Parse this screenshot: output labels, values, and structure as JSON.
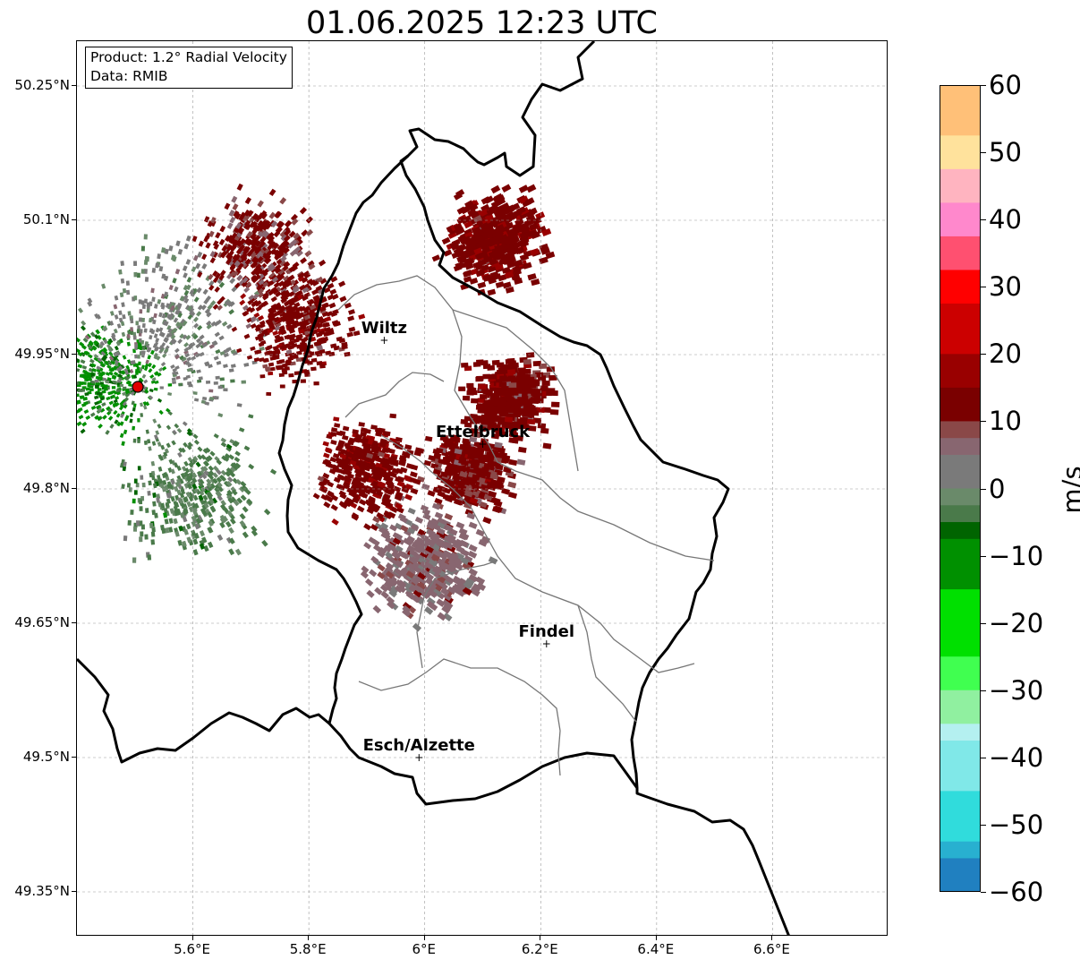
{
  "title": "01.06.2025 12:23 UTC",
  "info": {
    "product": "Product: 1.2° Radial Velocity",
    "data_source": "Data: RMIB"
  },
  "map": {
    "lon_range": [
      5.4,
      6.8
    ],
    "lat_range": [
      49.3,
      50.3
    ],
    "lat_ticks": [
      {
        "value": 50.25,
        "label": "50.25°N"
      },
      {
        "value": 50.1,
        "label": "50.1°N"
      },
      {
        "value": 49.95,
        "label": "49.95°N"
      },
      {
        "value": 49.8,
        "label": "49.8°N"
      },
      {
        "value": 49.65,
        "label": "49.65°N"
      },
      {
        "value": 49.5,
        "label": "49.5°N"
      },
      {
        "value": 49.35,
        "label": "49.35°N"
      }
    ],
    "lon_ticks": [
      {
        "value": 5.6,
        "label": "5.6°E"
      },
      {
        "value": 5.8,
        "label": "5.8°E"
      },
      {
        "value": 6.0,
        "label": "6°E"
      },
      {
        "value": 6.2,
        "label": "6.2°E"
      },
      {
        "value": 6.4,
        "label": "6.4°E"
      },
      {
        "value": 6.6,
        "label": "6.6°E"
      }
    ],
    "grid": true,
    "radar_site": {
      "lon": 5.505,
      "lat": 49.914,
      "color": "#e00000"
    },
    "cities": [
      {
        "name": "Wiltz",
        "lon": 5.93,
        "lat": 49.966
      },
      {
        "name": "Ettelbruck",
        "lon": 6.1,
        "lat": 49.85
      },
      {
        "name": "Findel",
        "lon": 6.21,
        "lat": 49.627
      },
      {
        "name": "Esch/Alzette",
        "lon": 5.99,
        "lat": 49.5
      }
    ]
  },
  "colorbar": {
    "label": "m/s",
    "min": -60,
    "max": 60,
    "ticks": [
      {
        "value": 60,
        "label": "60"
      },
      {
        "value": 50,
        "label": "50"
      },
      {
        "value": 40,
        "label": "40"
      },
      {
        "value": 30,
        "label": "30"
      },
      {
        "value": 20,
        "label": "20"
      },
      {
        "value": 10,
        "label": "10"
      },
      {
        "value": 0,
        "label": "0"
      },
      {
        "value": -10,
        "label": "−10"
      },
      {
        "value": -20,
        "label": "−20"
      },
      {
        "value": -30,
        "label": "−30"
      },
      {
        "value": -40,
        "label": "−40"
      },
      {
        "value": -50,
        "label": "−50"
      },
      {
        "value": -60,
        "label": "−60"
      }
    ],
    "stops": [
      {
        "v": 60,
        "color": "#ff9a50"
      },
      {
        "v": 52,
        "color": "#ffc078"
      },
      {
        "v": 47,
        "color": "#ffe29c"
      },
      {
        "v": 43,
        "color": "#ffb4c0"
      },
      {
        "v": 38,
        "color": "#ff88cc"
      },
      {
        "v": 32,
        "color": "#ff5070"
      },
      {
        "v": 28,
        "color": "#ff0000"
      },
      {
        "v": 20,
        "color": "#cc0000"
      },
      {
        "v": 15,
        "color": "#990000"
      },
      {
        "v": 9,
        "color": "#7a0000"
      },
      {
        "v": 8,
        "color": "#8a4848"
      },
      {
        "v": 4,
        "color": "#886670"
      },
      {
        "v": 0,
        "color": "#7a7a7a"
      },
      {
        "v": -2,
        "color": "#6a8a6a"
      },
      {
        "v": -6,
        "color": "#4a7a4a"
      },
      {
        "v": -7,
        "color": "#006400"
      },
      {
        "v": -14,
        "color": "#009000"
      },
      {
        "v": -24,
        "color": "#00e000"
      },
      {
        "v": -30,
        "color": "#40ff50"
      },
      {
        "v": -35,
        "color": "#90f0a0"
      },
      {
        "v": -37,
        "color": "#b4f0f0"
      },
      {
        "v": -44,
        "color": "#80e8e8"
      },
      {
        "v": -52,
        "color": "#30dcdc"
      },
      {
        "v": -56,
        "color": "#28b0d0"
      },
      {
        "v": -60,
        "color": "#2080c0"
      }
    ]
  },
  "radar_echoes": [
    {
      "lon": 5.45,
      "lat": 49.92,
      "value": -8,
      "spread": 0.08
    },
    {
      "lon": 5.56,
      "lat": 49.98,
      "value": 1,
      "spread": 0.12
    },
    {
      "lon": 5.6,
      "lat": 49.8,
      "value": -3,
      "spread": 0.1
    },
    {
      "lon": 5.78,
      "lat": 49.98,
      "value": 12,
      "spread": 0.08
    },
    {
      "lon": 5.72,
      "lat": 50.06,
      "value": 10,
      "spread": 0.08
    },
    {
      "lon": 6.12,
      "lat": 50.08,
      "value": 13,
      "spread": 0.07
    },
    {
      "lon": 6.15,
      "lat": 49.9,
      "value": 12,
      "spread": 0.06
    },
    {
      "lon": 6.08,
      "lat": 49.82,
      "value": 11,
      "spread": 0.06
    },
    {
      "lon": 6.0,
      "lat": 49.72,
      "value": 6,
      "spread": 0.08
    },
    {
      "lon": 5.9,
      "lat": 49.82,
      "value": 13,
      "spread": 0.07
    }
  ]
}
